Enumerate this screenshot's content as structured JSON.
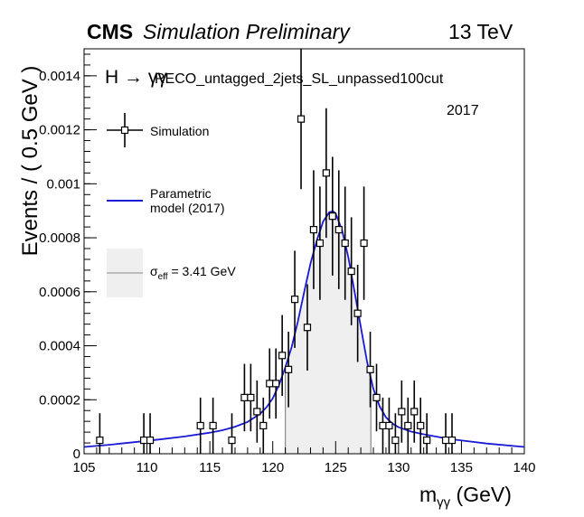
{
  "header": {
    "experiment": "CMS",
    "status": "Simulation Preliminary",
    "energy": "13 TeV"
  },
  "category": {
    "process": "H → γγ",
    "tag": "RECO_untagged_2jets_SL_unpassed100cut",
    "year": "2017"
  },
  "legend": {
    "simulation": "Simulation",
    "model_line1": "Parametric",
    "model_line2": "model (2017)",
    "sigma_symbol": "σ",
    "sigma_sub": "eff",
    "sigma_value": "= 3.41 GeV"
  },
  "colors": {
    "model_line": "#1a1ad6",
    "band_fill": "#efefef",
    "band_edge": "#888888",
    "points": "#000000"
  },
  "chart_data": {
    "type": "scatter",
    "title": "",
    "xlabel": "m_γγ (GeV)",
    "ylabel": "Events / ( 0.5 GeV )",
    "xlim": [
      105,
      140
    ],
    "ylim": [
      0,
      0.0015
    ],
    "x_ticks": [
      105,
      110,
      115,
      120,
      125,
      130,
      135,
      140
    ],
    "y_ticks": [
      0,
      0.0002,
      0.0004,
      0.0006,
      0.0008,
      0.001,
      0.0012,
      0.0014
    ],
    "x_tick_labels": [
      "105",
      "110",
      "115",
      "120",
      "125",
      "130",
      "135",
      "140"
    ],
    "y_tick_labels": [
      "0",
      "0.0002",
      "0.0004",
      "0.0006",
      "0.0008",
      "0.001",
      "0.0012",
      "0.0014"
    ],
    "sigma_eff_band": [
      121.0,
      127.8
    ],
    "series": [
      {
        "name": "Simulation",
        "kind": "points_with_errors",
        "x": [
          106.25,
          109.75,
          110.25,
          114.25,
          115.25,
          116.75,
          117.75,
          118.25,
          118.75,
          119.25,
          119.75,
          120.25,
          120.75,
          121.25,
          121.75,
          122.25,
          122.75,
          123.25,
          123.75,
          124.25,
          124.75,
          125.25,
          125.75,
          126.25,
          126.75,
          127.25,
          127.75,
          128.25,
          128.75,
          129.25,
          129.75,
          130.25,
          130.75,
          131.25,
          131.75,
          132.25,
          133.75,
          134.25
        ],
        "y": [
          5e-05,
          5e-05,
          5e-05,
          0.000104,
          0.000104,
          5e-05,
          0.000208,
          0.000208,
          0.000156,
          0.000104,
          0.00026,
          0.00026,
          0.000364,
          0.000312,
          0.000572,
          0.00124,
          0.000468,
          0.00083,
          0.00078,
          0.00104,
          0.00088,
          0.00083,
          0.00078,
          0.000676,
          0.00052,
          0.00078,
          0.000312,
          0.000208,
          0.000104,
          0.000104,
          5e-05,
          0.000156,
          0.000104,
          0.000156,
          0.000104,
          5e-05,
          5e-05,
          5e-05
        ],
        "yerr": [
          0.0001,
          0.0001,
          0.0001,
          0.000104,
          0.000104,
          0.0001,
          0.000125,
          0.000125,
          0.000115,
          0.000104,
          0.00013,
          0.00013,
          0.00015,
          0.00014,
          0.00018,
          0.00026,
          0.00016,
          0.00022,
          0.00021,
          0.00024,
          0.00022,
          0.00022,
          0.00021,
          0.0002,
          0.00018,
          0.00021,
          0.00014,
          0.000125,
          0.000104,
          0.000104,
          0.0001,
          0.000115,
          0.000104,
          0.000115,
          0.000104,
          0.0001,
          0.0001,
          0.0001
        ]
      },
      {
        "name": "Parametric model (2017)",
        "kind": "curve",
        "x": [
          105,
          107,
          109,
          111,
          113,
          115,
          116,
          117,
          118,
          119,
          119.5,
          120,
          120.5,
          121,
          121.5,
          122,
          122.5,
          123,
          123.5,
          124,
          124.5,
          124.8,
          125,
          125.5,
          126,
          126.5,
          127,
          127.5,
          128,
          128.5,
          129,
          129.5,
          130,
          131,
          132,
          134,
          137,
          140
        ],
        "y": [
          2.5e-05,
          3.3e-05,
          4.3e-05,
          5.3e-05,
          6.4e-05,
          7.8e-05,
          8.7e-05,
          0.0001,
          0.000118,
          0.000148,
          0.000172,
          0.000205,
          0.000255,
          0.00032,
          0.000395,
          0.00049,
          0.0006,
          0.000705,
          0.00079,
          0.00086,
          0.000895,
          0.000898,
          0.00089,
          0.00083,
          0.00073,
          0.0006,
          0.00047,
          0.00034,
          0.00024,
          0.000175,
          0.000135,
          0.000112,
          9.8e-05,
          8.2e-05,
          7.2e-05,
          5.5e-05,
          3.8e-05,
          2.5e-05
        ]
      }
    ],
    "legend_position": "top-left"
  }
}
